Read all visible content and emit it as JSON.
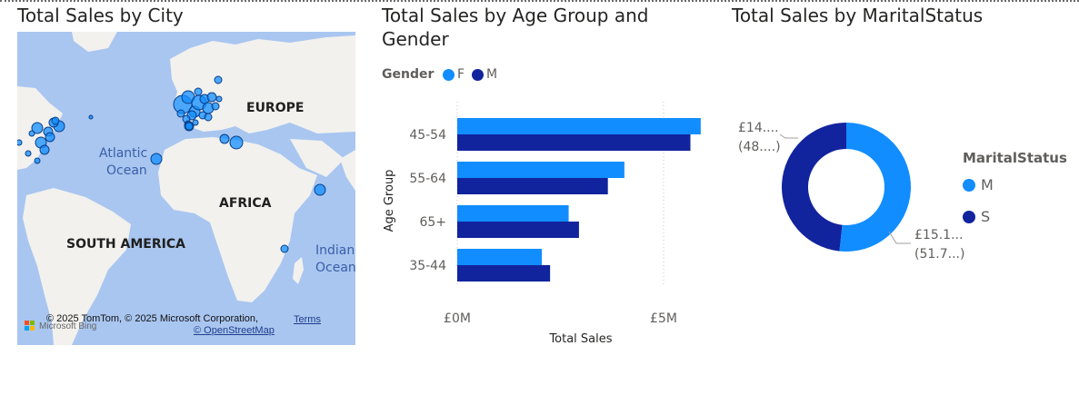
{
  "titles": {
    "map": "Total Sales by City",
    "bar_line1": "Total Sales by Age Group and",
    "bar_line2": "Gender",
    "donut": "Total Sales by MaritalStatus"
  },
  "map": {
    "labels": {
      "europe": "EUROPE",
      "atlantic1": "Atlantic",
      "atlantic2": "Ocean",
      "africa": "AFRICA",
      "south_america": "SOUTH AMERICA",
      "indian1": "Indian",
      "indian2": "Ocean"
    },
    "attribution": "© 2025 TomTom, © 2025 Microsoft Corporation,",
    "terms": "Terms",
    "osm": "© OpenStreetMap",
    "bing": "Microsoft Bing",
    "colors": {
      "water": "#a9c6f0",
      "land": "#f2f1ee",
      "bubble": "#118dff",
      "bubble_stroke": "#0a3f8a"
    }
  },
  "chart_data": [
    {
      "type": "bar",
      "orientation": "horizontal",
      "title": "Total Sales by Age Group and Gender",
      "xlabel": "Total Sales",
      "ylabel": "Age Group",
      "categories": [
        "45-54",
        "55-64",
        "65+",
        "35-44"
      ],
      "legend_title": "Gender",
      "series": [
        {
          "name": "F",
          "color": "#118dff",
          "values": [
            5.9,
            4.05,
            2.7,
            2.05
          ]
        },
        {
          "name": "M",
          "color": "#12239e",
          "values": [
            5.65,
            3.65,
            2.95,
            2.25
          ]
        }
      ],
      "xticks": [
        "£0M",
        "£5M"
      ],
      "xtick_values": [
        0,
        5
      ],
      "xlim": [
        0,
        6
      ],
      "legend_position": "top-left",
      "grid": true
    },
    {
      "type": "pie",
      "subtype": "donut",
      "title": "Total Sales by MaritalStatus",
      "legend_title": "MaritalStatus",
      "categories": [
        "M",
        "S"
      ],
      "values": [
        51.7,
        48.3
      ],
      "colors": [
        "#118dff",
        "#12239e"
      ],
      "data_labels": [
        {
          "line1": "£15.1...",
          "line2": "(51.7...)"
        },
        {
          "line1": "£14....",
          "line2": "(48....)"
        }
      ],
      "legend_position": "right"
    }
  ]
}
